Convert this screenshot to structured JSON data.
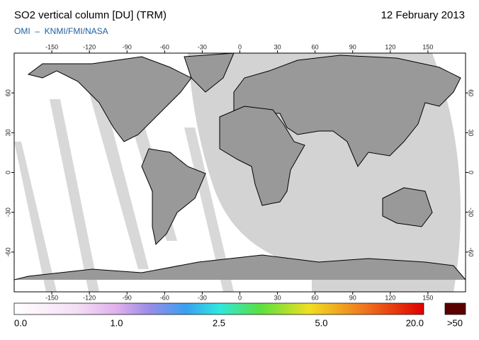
{
  "header": {
    "title": "SO2 vertical column [DU] (TRM)",
    "date": "12 February 2013",
    "subtitle": "OMI  –  KNMI/FMI/NASA"
  },
  "map": {
    "lon_ticks": [
      -150,
      -120,
      -90,
      -60,
      -30,
      0,
      30,
      60,
      90,
      120,
      150
    ],
    "lat_ticks": [
      -60,
      -30,
      0,
      30,
      60
    ]
  },
  "colorbar": {
    "labels": [
      "0.0",
      "1.0",
      "2.5",
      "5.0",
      "20.0"
    ],
    "overflow_label": ">50"
  }
}
